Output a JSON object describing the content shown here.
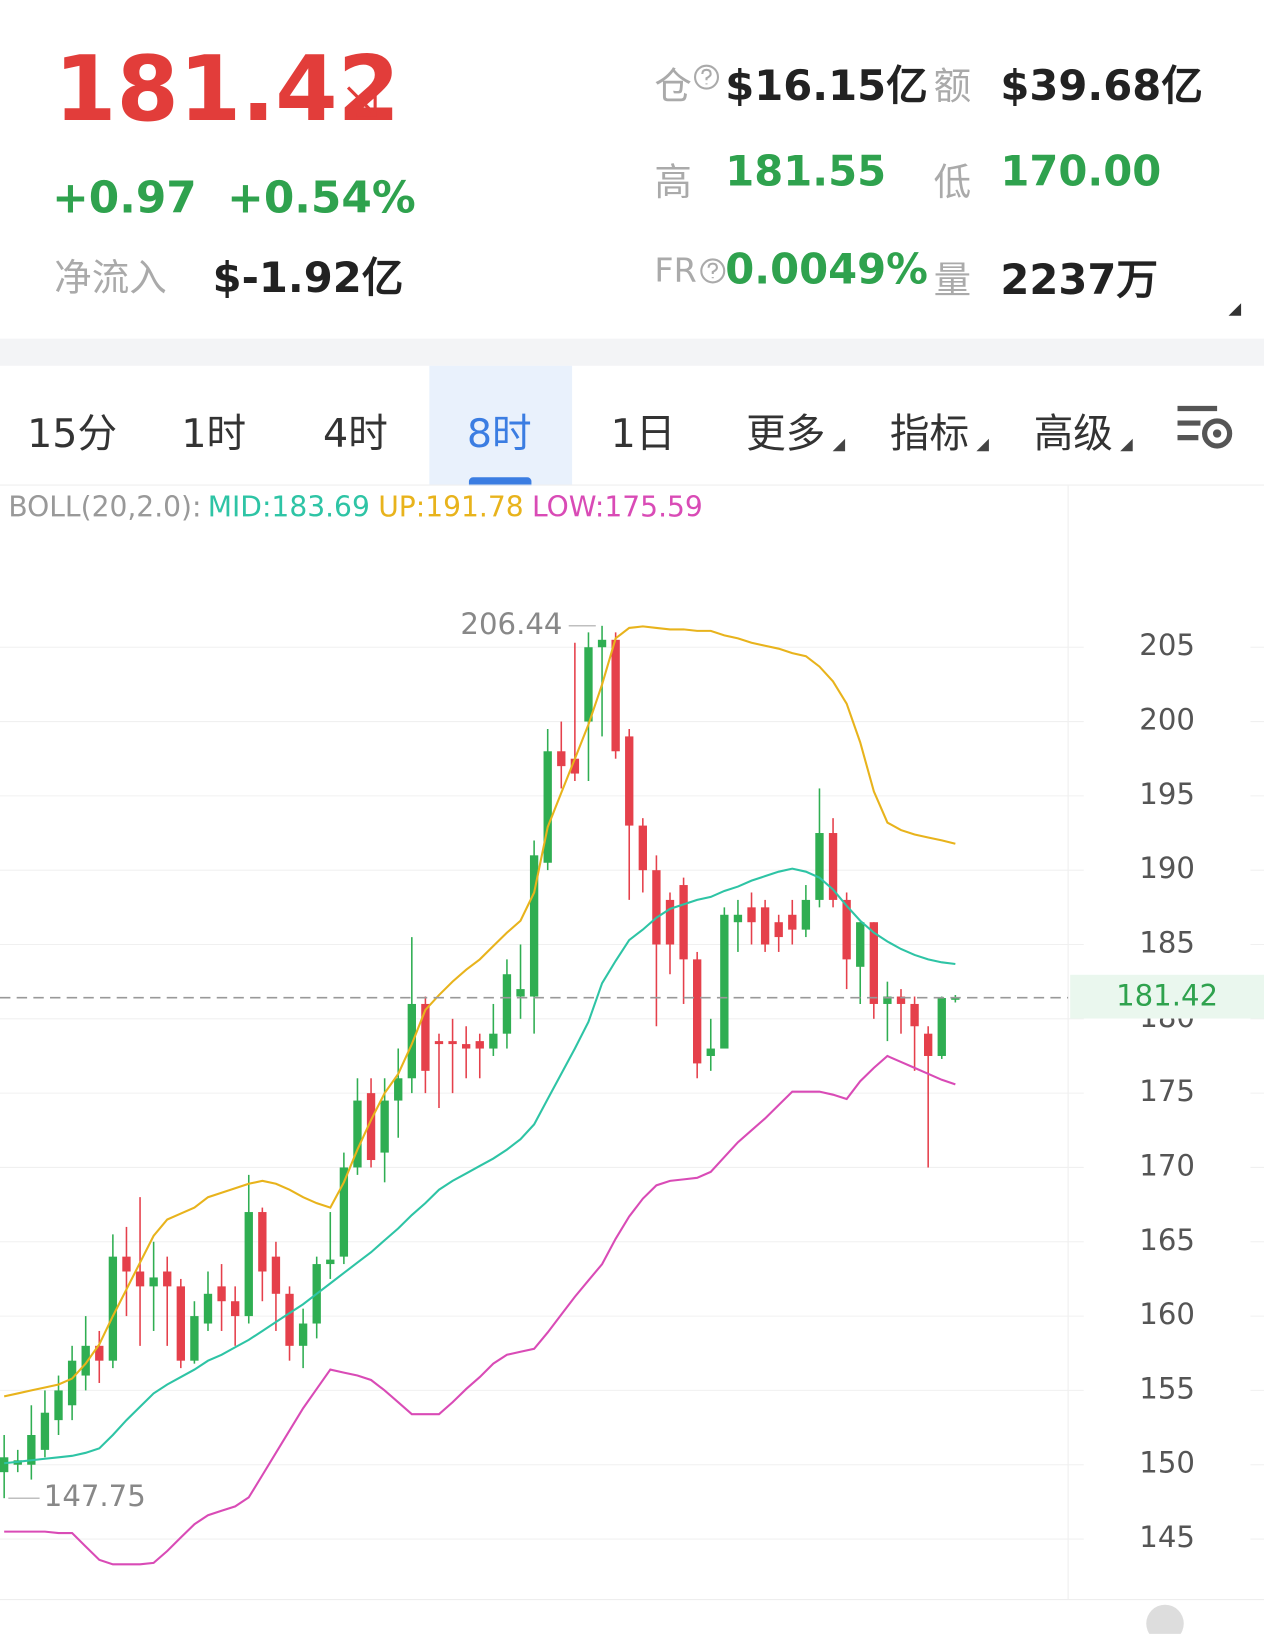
{
  "header": {
    "price": "181.42",
    "change": "+0.97",
    "change_pct": "+0.54%",
    "net_inflow_label": "净流入",
    "net_inflow": "$-1.92亿",
    "stats": [
      {
        "label": "仓",
        "value": "$16.15亿"
      },
      {
        "label": "额",
        "value": "$39.68亿"
      },
      {
        "label": "高",
        "value": "181.55"
      },
      {
        "label": "低",
        "value": "170.00"
      },
      {
        "label": "FR",
        "value": "0.0049%"
      },
      {
        "label": "量",
        "value": "2237万"
      }
    ]
  },
  "tabs": [
    "15分",
    "1时",
    "4时",
    "8时",
    "1日",
    "更多",
    "指标",
    "高级"
  ],
  "active_tab": 3,
  "chart_data": {
    "type": "candlestick",
    "indicator": "BOLL(20,2.0):",
    "ylim": [
      141,
      213
    ],
    "yticks": [
      145,
      150,
      155,
      160,
      165,
      170,
      175,
      180,
      185,
      190,
      195,
      200,
      205
    ],
    "grid": true,
    "up_color": "#2fae52",
    "down_color": "#e5404b",
    "last_price": 181.42,
    "max_index": 44,
    "min_index": 0,
    "open": [
      149.5,
      150,
      150,
      151,
      153,
      154,
      156,
      158,
      157,
      164,
      163,
      162,
      163,
      162,
      157,
      159.5,
      162,
      161,
      160,
      167,
      164,
      161.5,
      158,
      159.5,
      163.5,
      164,
      170,
      175,
      171,
      174.5,
      176,
      181,
      178.5,
      178.5,
      178.3,
      178.5,
      178,
      179,
      181.5,
      181.5,
      190.5,
      198,
      197.5,
      200,
      205,
      205.5,
      199,
      193,
      190,
      188,
      189,
      184,
      177.5,
      178,
      186.5,
      187.5,
      187.5,
      186.5,
      187,
      186,
      188,
      192.5,
      188,
      183.5,
      186.5,
      181,
      181.5,
      181,
      179,
      177.5,
      181.3
    ],
    "high": [
      152,
      151,
      154,
      155,
      156,
      158,
      160,
      159,
      165.5,
      166,
      168,
      165,
      164,
      162.5,
      161,
      163,
      163.5,
      162,
      169.5,
      167.3,
      165,
      162,
      160.5,
      164,
      167,
      171,
      176,
      176,
      176,
      178,
      185.5,
      181.5,
      179,
      180,
      179.5,
      179,
      181,
      184,
      185,
      192,
      199.5,
      200,
      205.3,
      206,
      206.44,
      206,
      199.5,
      193.5,
      191,
      188.5,
      189.5,
      184.5,
      180,
      187.5,
      188,
      188.5,
      188,
      187,
      188,
      189,
      195.5,
      193.5,
      188.5,
      186.5,
      186.5,
      182.5,
      182,
      181.5,
      179.5,
      181.5,
      181.6
    ],
    "low": [
      147.75,
      149.5,
      149,
      150.5,
      152,
      153,
      155,
      155.5,
      156.5,
      160,
      158,
      159,
      158,
      156.5,
      156.8,
      159,
      159,
      158,
      159.5,
      161,
      159,
      157,
      156.5,
      158.5,
      162.5,
      163.5,
      169.5,
      170,
      169,
      172,
      175,
      175,
      174,
      175,
      176,
      176,
      177.5,
      178,
      180,
      179,
      190,
      195.5,
      196,
      196,
      199,
      197.5,
      188,
      188.5,
      179.5,
      183,
      181,
      176,
      176.5,
      178,
      184.5,
      185,
      184.5,
      184.5,
      185,
      185.5,
      187.5,
      187.5,
      182,
      181,
      180,
      178.5,
      179,
      176.5,
      170,
      177.3,
      181.1
    ],
    "close": [
      150.5,
      150.3,
      152,
      153.5,
      155,
      157,
      158,
      157,
      164,
      163,
      162,
      162.6,
      162,
      157,
      160,
      161.5,
      161,
      160,
      167,
      163,
      161.5,
      158,
      159.5,
      163.5,
      163.8,
      170,
      174.5,
      170.5,
      174.5,
      176,
      181,
      176.5,
      178.3,
      178.3,
      178,
      178,
      179,
      183,
      182,
      191,
      198,
      197,
      196.5,
      205,
      205.5,
      198,
      193,
      190,
      185,
      185,
      184,
      177,
      178,
      187,
      187,
      186.5,
      185,
      185.5,
      186,
      188,
      192.5,
      188,
      184,
      186.5,
      181,
      181.5,
      181,
      179.5,
      177.5,
      181.4,
      181.42
    ],
    "bands": [
      {
        "label": "MID:183.69",
        "color": "#2ec4a5",
        "values": [
          150.1,
          150.2,
          150.3,
          150.4,
          150.5,
          150.6,
          150.8,
          151.1,
          152,
          153,
          153.9,
          154.8,
          155.4,
          155.9,
          156.4,
          157,
          157.4,
          157.9,
          158.4,
          159,
          159.6,
          160.2,
          160.8,
          161.5,
          162.2,
          162.9,
          163.6,
          164.3,
          165.1,
          165.9,
          166.8,
          167.6,
          168.5,
          169.1,
          169.6,
          170.1,
          170.6,
          171.2,
          171.9,
          172.9,
          174.6,
          176.3,
          178,
          179.8,
          182.4,
          183.9,
          185.3,
          186,
          186.8,
          187.4,
          187.7,
          188,
          188.2,
          188.6,
          188.9,
          189.3,
          189.6,
          189.9,
          190.1,
          189.9,
          189.5,
          188.7,
          187.6,
          186.6,
          185.8,
          185.2,
          184.7,
          184.3,
          184,
          183.8,
          183.69
        ]
      },
      {
        "label": "UP:191.78",
        "color": "#e8b31c",
        "values": [
          154.6,
          154.8,
          155,
          155.2,
          155.4,
          155.8,
          156.8,
          158.1,
          160,
          161.8,
          163.6,
          165.4,
          166.5,
          166.9,
          167.3,
          168,
          168.3,
          168.6,
          168.9,
          169.1,
          168.9,
          168.5,
          168,
          167.6,
          167.3,
          169,
          171.2,
          173.2,
          175,
          176.3,
          178.3,
          180.6,
          181.6,
          182.5,
          183.3,
          184,
          184.9,
          185.8,
          186.6,
          188.5,
          192.9,
          195.2,
          197.5,
          199.8,
          202.5,
          205.6,
          206.3,
          206.4,
          206.3,
          206.2,
          206.2,
          206.1,
          206.1,
          205.8,
          205.6,
          205.3,
          205.1,
          204.9,
          204.6,
          204.4,
          203.7,
          202.7,
          201.2,
          198.6,
          195.3,
          193.2,
          192.7,
          192.4,
          192.2,
          192,
          191.78
        ]
      },
      {
        "label": "LOW:175.59",
        "color": "#d94bb6",
        "values": [
          145.5,
          145.5,
          145.5,
          145.5,
          145.4,
          145.4,
          144.5,
          143.6,
          143.3,
          143.3,
          143.3,
          143.4,
          144.2,
          145.1,
          146,
          146.6,
          146.9,
          147.2,
          147.8,
          149.3,
          150.8,
          152.3,
          153.8,
          155.1,
          156.4,
          156.2,
          156,
          155.7,
          155,
          154.2,
          153.4,
          153.4,
          153.4,
          154.2,
          155.1,
          155.9,
          156.8,
          157.4,
          157.6,
          157.8,
          158.9,
          160.1,
          161.3,
          162.4,
          163.5,
          165.2,
          166.7,
          167.9,
          168.8,
          169.1,
          169.2,
          169.3,
          169.7,
          170.7,
          171.7,
          172.5,
          173.3,
          174.2,
          175.1,
          175.1,
          175.1,
          174.9,
          174.6,
          175.8,
          176.7,
          177.5,
          177.1,
          176.7,
          176.3,
          175.9,
          175.59
        ]
      }
    ]
  }
}
